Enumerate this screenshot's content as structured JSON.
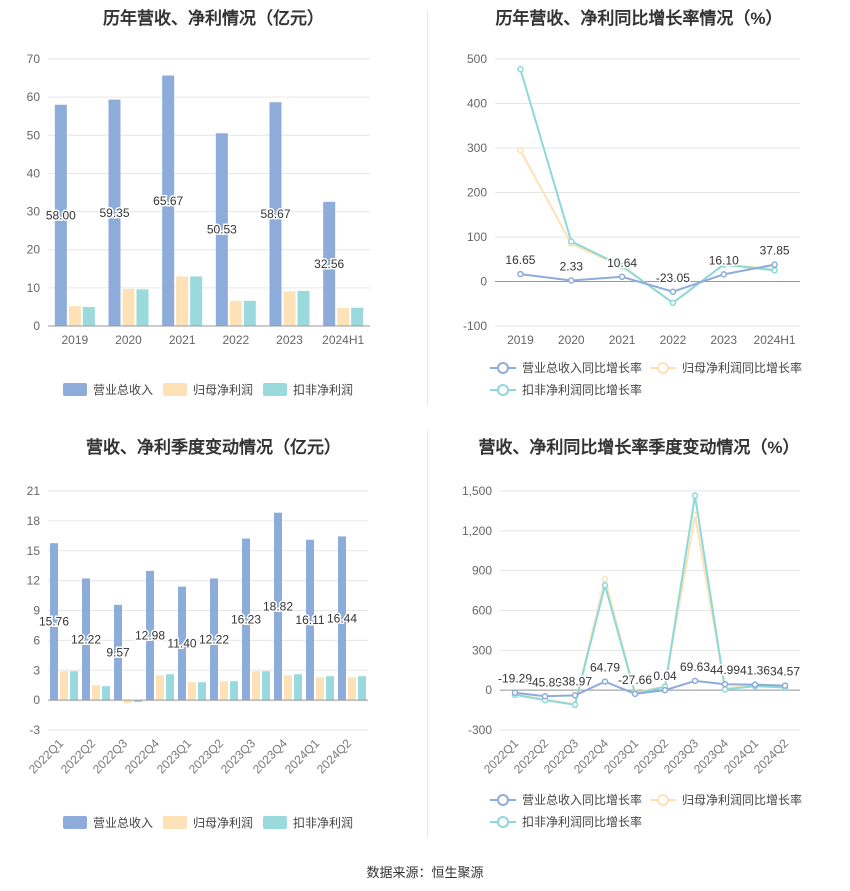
{
  "source": "数据来源：恒生聚源",
  "colors": {
    "revenue": "#8eacd9",
    "netprofit": "#fde2b7",
    "deducted": "#9ad9dc",
    "revenueLine": "#8eacd9",
    "netLine": "#fde2b7",
    "dedLine": "#8dd9da"
  },
  "chart_data": [
    {
      "id": "annual-bar",
      "type": "bar",
      "title": "历年营收、净利情况（亿元）",
      "categories": [
        "2019",
        "2020",
        "2021",
        "2022",
        "2023",
        "2024H1"
      ],
      "series": [
        {
          "name": "营业总收入",
          "values": [
            58.0,
            59.35,
            65.67,
            50.53,
            58.67,
            32.56
          ]
        },
        {
          "name": "归母净利润",
          "values": [
            5.2,
            9.7,
            13.0,
            6.6,
            9.1,
            4.7
          ]
        },
        {
          "name": "扣非净利润",
          "values": [
            5.0,
            9.6,
            13.0,
            6.6,
            9.2,
            4.8
          ]
        }
      ],
      "data_labels": [
        "58.00",
        "59.35",
        "65.67",
        "50.53",
        "58.67",
        "32.56"
      ],
      "ylim": [
        0,
        70
      ],
      "yticks": [
        "0",
        "10",
        "20",
        "30",
        "40",
        "50",
        "60",
        "70"
      ],
      "grid": true,
      "legend": "bottom"
    },
    {
      "id": "annual-line",
      "type": "line",
      "title": "历年营收、净利同比增长率情况（%）",
      "categories": [
        "2019",
        "2020",
        "2021",
        "2022",
        "2023",
        "2024H1"
      ],
      "series": [
        {
          "name": "营业总收入同比增长率",
          "values": [
            16.65,
            2.33,
            10.64,
            -23.05,
            16.1,
            37.85
          ]
        },
        {
          "name": "归母净利润同比增长率",
          "values": [
            295,
            85,
            33,
            -48,
            38,
            28
          ]
        },
        {
          "name": "扣非净利润同比增长率",
          "values": [
            477,
            90,
            35,
            -48,
            38,
            25
          ]
        }
      ],
      "data_labels": [
        "16.65",
        "2.33",
        "10.64",
        "-23.05",
        "16.10",
        "37.85"
      ],
      "ylim": [
        -100,
        500
      ],
      "yticks": [
        "-100",
        "0",
        "100",
        "200",
        "300",
        "400",
        "500"
      ],
      "grid": true,
      "legend": "bottom"
    },
    {
      "id": "quarter-bar",
      "type": "bar",
      "title": "营收、净利季度变动情况（亿元）",
      "categories": [
        "2022Q1",
        "2022Q2",
        "2022Q3",
        "2022Q4",
        "2023Q1",
        "2023Q2",
        "2023Q3",
        "2023Q4",
        "2024Q1",
        "2024Q2"
      ],
      "series": [
        {
          "name": "营业总收入",
          "values": [
            15.76,
            12.22,
            9.57,
            12.98,
            11.4,
            12.22,
            16.23,
            18.82,
            16.11,
            16.44
          ]
        },
        {
          "name": "归母净利润",
          "values": [
            2.9,
            1.5,
            -0.3,
            2.5,
            1.8,
            1.9,
            2.9,
            2.5,
            2.3,
            2.3
          ]
        },
        {
          "name": "扣非净利润",
          "values": [
            2.9,
            1.4,
            -0.2,
            2.6,
            1.8,
            1.9,
            2.9,
            2.6,
            2.4,
            2.4
          ]
        }
      ],
      "data_labels": [
        "15.76",
        "12.22",
        "9.57",
        "12.98",
        "11.40",
        "12.22",
        "16.23",
        "18.82",
        "16.11",
        "16.44"
      ],
      "ylim": [
        -3,
        21
      ],
      "yticks": [
        "-3",
        "0",
        "3",
        "6",
        "9",
        "12",
        "15",
        "18",
        "21"
      ],
      "grid": true,
      "legend": "bottom"
    },
    {
      "id": "quarter-line",
      "type": "line",
      "title": "营收、净利同比增长率季度变动情况（%）",
      "categories": [
        "2022Q1",
        "2022Q2",
        "2022Q3",
        "2022Q4",
        "2023Q1",
        "2023Q2",
        "2023Q3",
        "2023Q4",
        "2024Q1",
        "2024Q2"
      ],
      "series": [
        {
          "name": "营业总收入同比增长率",
          "values": [
            -19.29,
            -45.89,
            -38.97,
            64.79,
            -27.66,
            0.04,
            69.63,
            44.99,
            41.36,
            34.57
          ]
        },
        {
          "name": "归母净利润同比增长率",
          "values": [
            -30,
            -70,
            -105,
            835,
            -20,
            30,
            1320,
            15,
            35,
            25
          ]
        },
        {
          "name": "扣非净利润同比增长率",
          "values": [
            -35,
            -75,
            -110,
            790,
            -25,
            25,
            1465,
            5,
            30,
            20
          ]
        }
      ],
      "data_labels": [
        "-19.29",
        "-45.89",
        "-38.97",
        "64.79",
        "-27.66",
        "0.04",
        "69.63",
        "44.99",
        "41.36",
        "34.57"
      ],
      "ylim": [
        -300,
        1500
      ],
      "yticks": [
        "-300",
        "0",
        "300",
        "600",
        "900",
        "1,200",
        "1,500"
      ],
      "grid": true,
      "legend": "bottom"
    }
  ]
}
